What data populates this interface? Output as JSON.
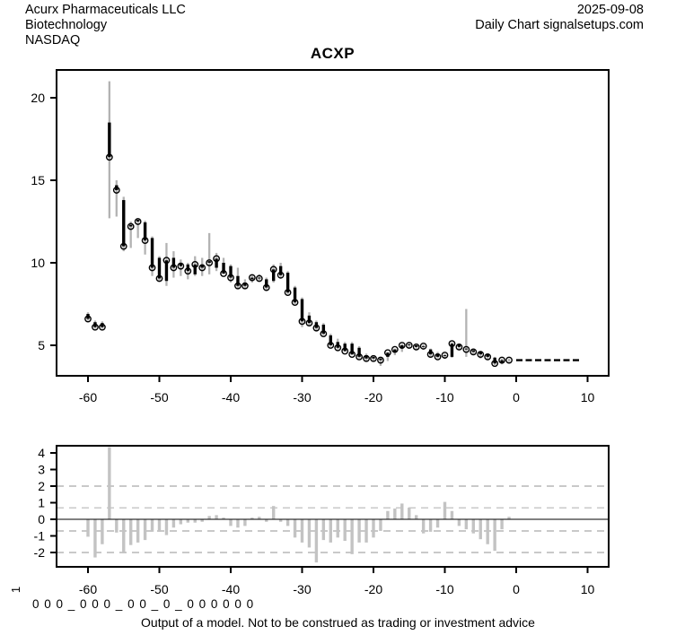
{
  "header": {
    "company": "Acurx Pharmaceuticals LLC",
    "sector": "Biotechnology",
    "exchange": "NASDAQ",
    "date": "2025-09-08",
    "chart_type": "Daily Chart signalsetups.com"
  },
  "title": "ACXP",
  "footer": {
    "rotated_label": "1",
    "signal_string": "0 0 0 _ 0 0 0 _ 0 0 _ 0 _ 0 0 0 0 0 0",
    "disclaimer": "Output of a model. Not to be construed as trading or investment advice"
  },
  "colors": {
    "background": "#ffffff",
    "axis": "#000000",
    "wick": "#b3b3b3",
    "body": "#000000",
    "close_marker": "#000000",
    "histogram_bar": "#c3c3c3",
    "guide_dash": "#c9c9c9",
    "forecast": "#000000"
  },
  "chart_data": [
    {
      "type": "ohlc",
      "panel": "price",
      "title": "ACXP",
      "xlabel": "",
      "ylabel": "",
      "x_ticks": [
        -60,
        -50,
        -40,
        -30,
        -20,
        -10,
        0,
        10
      ],
      "y_ticks": [
        20,
        15,
        10,
        5
      ],
      "xlim": [
        -64,
        13
      ],
      "ylim": [
        3.2,
        21.7
      ],
      "grid": false,
      "days": [
        -60,
        -59,
        -58,
        -57,
        -56,
        -55,
        -54,
        -53,
        -52,
        -51,
        -50,
        -49,
        -48,
        -47,
        -46,
        -45,
        -44,
        -43,
        -42,
        -41,
        -40,
        -39,
        -38,
        -37,
        -36,
        -35,
        -34,
        -33,
        -32,
        -31,
        -30,
        -29,
        -28,
        -27,
        -26,
        -25,
        -24,
        -23,
        -22,
        -21,
        -20,
        -19,
        -18,
        -17,
        -16,
        -15,
        -14,
        -13,
        -12,
        -11,
        -10,
        -9,
        -8,
        -7,
        -6,
        -5,
        -4,
        -3,
        -2,
        -1
      ],
      "open": [
        6.9,
        6.4,
        6.35,
        18.5,
        14.7,
        13.8,
        12.3,
        12.6,
        12.45,
        11.5,
        10.3,
        8.9,
        10.3,
        10.0,
        9.9,
        9.3,
        9.9,
        10.1,
        9.7,
        10.0,
        9.8,
        9.2,
        8.8,
        9.0,
        9.1,
        9.0,
        8.9,
        9.8,
        9.4,
        8.5,
        7.8,
        6.8,
        6.4,
        6.25,
        5.6,
        5.2,
        5.1,
        5.1,
        4.85,
        4.4,
        4.3,
        4.2,
        4.3,
        4.6,
        4.8,
        5.05,
        5.0,
        4.9,
        4.75,
        4.5,
        4.35,
        4.3,
        5.05,
        4.8,
        4.7,
        4.6,
        4.45,
        4.25,
        3.95,
        4.1
      ],
      "high": [
        7.0,
        6.5,
        6.45,
        21.0,
        15.0,
        14.0,
        12.5,
        12.7,
        12.55,
        11.6,
        10.4,
        11.2,
        10.7,
        10.2,
        10.0,
        10.4,
        10.3,
        11.8,
        10.6,
        10.3,
        9.9,
        9.7,
        9.0,
        9.3,
        9.3,
        9.1,
        9.9,
        10.0,
        9.5,
        8.6,
        7.9,
        7.0,
        6.5,
        6.35,
        5.7,
        5.4,
        5.2,
        5.2,
        4.95,
        4.5,
        4.4,
        4.3,
        4.6,
        4.8,
        5.1,
        5.15,
        5.1,
        5.05,
        4.8,
        4.6,
        4.5,
        5.2,
        5.1,
        7.2,
        4.8,
        4.65,
        4.5,
        4.3,
        4.2,
        4.2
      ],
      "low": [
        6.5,
        6.0,
        6.0,
        12.7,
        12.8,
        10.7,
        10.9,
        11.5,
        10.5,
        9.2,
        8.9,
        8.6,
        9.1,
        9.2,
        9.0,
        9.2,
        9.2,
        9.3,
        9.5,
        9.3,
        8.8,
        8.4,
        8.4,
        8.8,
        8.9,
        8.3,
        8.8,
        9.1,
        8.1,
        7.5,
        6.1,
        6.2,
        5.9,
        5.6,
        4.9,
        4.75,
        4.6,
        4.4,
        4.2,
        4.05,
        4.05,
        3.75,
        4.05,
        4.4,
        4.6,
        4.8,
        4.7,
        4.75,
        4.3,
        4.2,
        4.2,
        4.25,
        4.7,
        4.3,
        4.4,
        4.2,
        4.1,
        3.8,
        3.85,
        4.0
      ],
      "close": [
        6.6,
        6.1,
        6.1,
        16.4,
        14.4,
        11.0,
        12.2,
        12.5,
        11.35,
        9.7,
        9.05,
        10.15,
        9.7,
        9.8,
        9.5,
        9.9,
        9.7,
        10.0,
        10.25,
        9.35,
        9.1,
        8.6,
        8.6,
        9.1,
        9.05,
        8.5,
        9.6,
        9.25,
        8.2,
        7.6,
        6.45,
        6.35,
        6.05,
        5.7,
        5.0,
        4.85,
        4.65,
        4.45,
        4.3,
        4.2,
        4.2,
        4.1,
        4.55,
        4.75,
        5.0,
        5.0,
        4.9,
        4.95,
        4.45,
        4.3,
        4.4,
        5.1,
        4.9,
        4.75,
        4.6,
        4.45,
        4.3,
        3.9,
        4.1,
        4.1
      ],
      "forecast": {
        "style": "dashed",
        "value": 4.1,
        "day_start": 0,
        "day_end": 9
      }
    },
    {
      "type": "bar",
      "panel": "model_output",
      "xlabel": "",
      "ylabel": "",
      "x_ticks": [
        -60,
        -50,
        -40,
        -30,
        -20,
        -10,
        0,
        10
      ],
      "y_ticks": [
        4,
        3,
        2,
        1,
        0,
        -1,
        -2
      ],
      "ylim": [
        -2.8,
        4.6
      ],
      "zero_line": 0,
      "guide_lines": [
        2,
        0.7,
        -0.7,
        -2
      ],
      "days": [
        -60,
        -59,
        -58,
        -57,
        -56,
        -55,
        -54,
        -53,
        -52,
        -51,
        -50,
        -49,
        -48,
        -47,
        -46,
        -45,
        -44,
        -43,
        -42,
        -41,
        -40,
        -39,
        -38,
        -37,
        -36,
        -35,
        -34,
        -33,
        -32,
        -31,
        -30,
        -29,
        -28,
        -27,
        -26,
        -25,
        -24,
        -23,
        -22,
        -21,
        -20,
        -19,
        -18,
        -17,
        -16,
        -15,
        -14,
        -13,
        -12,
        -11,
        -10,
        -9,
        -8,
        -7,
        -6,
        -5,
        -4,
        -3,
        -2,
        -1
      ],
      "values": [
        -1.05,
        -2.3,
        -1.5,
        4.35,
        -0.8,
        -2.05,
        -1.55,
        -1.4,
        -1.25,
        -0.75,
        -0.75,
        -0.95,
        -0.5,
        -0.3,
        -0.2,
        -0.2,
        -0.15,
        0.2,
        0.25,
        0.1,
        -0.4,
        -0.5,
        -0.4,
        0.1,
        0.15,
        -0.15,
        0.8,
        -0.15,
        -0.4,
        -1.1,
        -1.4,
        -1.7,
        -2.6,
        -1.25,
        -1.4,
        -1.1,
        -1.3,
        -2.1,
        -1.4,
        -1.4,
        -1.1,
        -0.7,
        0.5,
        0.65,
        0.95,
        0.7,
        0.25,
        -0.85,
        -0.75,
        -0.5,
        1.05,
        0.5,
        -0.4,
        -0.6,
        -0.85,
        -1.2,
        -1.5,
        -1.9,
        -0.6,
        0.15
      ]
    }
  ]
}
